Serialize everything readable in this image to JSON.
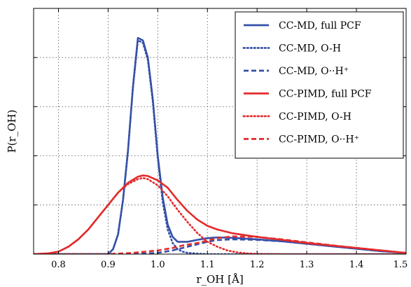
{
  "chart_data": {
    "type": "line",
    "title": "",
    "xlabel": "r_OH [Å]",
    "ylabel": "P(r_OH)",
    "xlim": [
      0.75,
      1.5
    ],
    "ylim": [
      0,
      1.0
    ],
    "x_ticks": [
      0.8,
      0.9,
      1.0,
      1.1,
      1.2,
      1.3,
      1.4,
      1.5
    ],
    "x_tick_labels": [
      "0.8",
      "0.9",
      "1.0",
      "1.1",
      "1.2",
      "1.3",
      "1.4",
      "1.5"
    ],
    "y_ticks": [
      0.2,
      0.4,
      0.6,
      0.8
    ],
    "grid": true,
    "legend_position": "top-right",
    "series": [
      {
        "name": "CC-MD, full PCF",
        "color": "#3550a8",
        "style": "solid",
        "x": [
          0.75,
          0.9,
          0.91,
          0.92,
          0.93,
          0.94,
          0.95,
          0.96,
          0.97,
          0.98,
          0.99,
          1.0,
          1.01,
          1.02,
          1.03,
          1.04,
          1.05,
          1.06,
          1.08,
          1.1,
          1.12,
          1.15,
          1.2,
          1.25,
          1.3,
          1.35,
          1.4,
          1.45,
          1.5
        ],
        "y": [
          0,
          0,
          0.02,
          0.08,
          0.22,
          0.42,
          0.68,
          0.88,
          0.87,
          0.8,
          0.63,
          0.4,
          0.23,
          0.12,
          0.07,
          0.05,
          0.05,
          0.05,
          0.058,
          0.065,
          0.068,
          0.066,
          0.06,
          0.052,
          0.042,
          0.032,
          0.022,
          0.012,
          0.005
        ]
      },
      {
        "name": "CC-MD, O-H",
        "color": "#3550a8",
        "style": "dotted",
        "x": [
          0.75,
          0.9,
          0.91,
          0.92,
          0.93,
          0.94,
          0.95,
          0.96,
          0.97,
          0.98,
          0.99,
          1.0,
          1.01,
          1.02,
          1.03,
          1.04,
          1.05,
          1.06,
          1.08,
          1.1,
          1.15,
          1.2,
          1.5
        ],
        "y": [
          0,
          0,
          0.02,
          0.08,
          0.22,
          0.42,
          0.68,
          0.87,
          0.86,
          0.79,
          0.62,
          0.39,
          0.21,
          0.1,
          0.045,
          0.02,
          0.01,
          0.005,
          0.002,
          0,
          0,
          0,
          0
        ]
      },
      {
        "name": "CC-MD, O··H⁺",
        "color": "#3550a8",
        "style": "dashed",
        "x": [
          0.75,
          0.95,
          1.0,
          1.03,
          1.05,
          1.08,
          1.1,
          1.12,
          1.15,
          1.2,
          1.25,
          1.3,
          1.35,
          1.4,
          1.45,
          1.5
        ],
        "y": [
          0,
          0,
          0.005,
          0.015,
          0.025,
          0.04,
          0.05,
          0.057,
          0.06,
          0.058,
          0.052,
          0.042,
          0.032,
          0.022,
          0.012,
          0.005
        ]
      },
      {
        "name": "CC-PIMD, full PCF",
        "color": "#e32b2b",
        "style": "solid",
        "x": [
          0.75,
          0.78,
          0.8,
          0.82,
          0.84,
          0.86,
          0.88,
          0.9,
          0.92,
          0.94,
          0.96,
          0.97,
          0.98,
          1.0,
          1.02,
          1.04,
          1.06,
          1.08,
          1.1,
          1.12,
          1.15,
          1.2,
          1.25,
          1.3,
          1.35,
          1.4,
          1.45,
          1.5
        ],
        "y": [
          0,
          0.003,
          0.01,
          0.03,
          0.06,
          0.1,
          0.15,
          0.2,
          0.25,
          0.29,
          0.315,
          0.32,
          0.318,
          0.3,
          0.27,
          0.22,
          0.175,
          0.14,
          0.115,
          0.1,
          0.085,
          0.07,
          0.058,
          0.045,
          0.035,
          0.025,
          0.015,
          0.005
        ]
      },
      {
        "name": "CC-PIMD, O-H",
        "color": "#e32b2b",
        "style": "dotted",
        "x": [
          0.75,
          0.78,
          0.8,
          0.82,
          0.84,
          0.86,
          0.88,
          0.9,
          0.92,
          0.94,
          0.96,
          0.97,
          0.98,
          1.0,
          1.02,
          1.04,
          1.06,
          1.08,
          1.1,
          1.12,
          1.14,
          1.16,
          1.18,
          1.2,
          1.25,
          1.5
        ],
        "y": [
          0,
          0.003,
          0.01,
          0.03,
          0.06,
          0.1,
          0.15,
          0.2,
          0.25,
          0.285,
          0.305,
          0.31,
          0.305,
          0.28,
          0.235,
          0.18,
          0.13,
          0.085,
          0.05,
          0.03,
          0.015,
          0.007,
          0.003,
          0.001,
          0,
          0
        ]
      },
      {
        "name": "CC-PIMD, O··H⁺",
        "color": "#e32b2b",
        "style": "dashed",
        "x": [
          0.75,
          0.9,
          0.95,
          1.0,
          1.03,
          1.05,
          1.08,
          1.1,
          1.12,
          1.15,
          1.2,
          1.25,
          1.3,
          1.35,
          1.4,
          1.45,
          1.5
        ],
        "y": [
          0,
          0,
          0.005,
          0.015,
          0.025,
          0.035,
          0.045,
          0.055,
          0.065,
          0.072,
          0.07,
          0.06,
          0.048,
          0.036,
          0.025,
          0.015,
          0.005
        ]
      }
    ]
  }
}
